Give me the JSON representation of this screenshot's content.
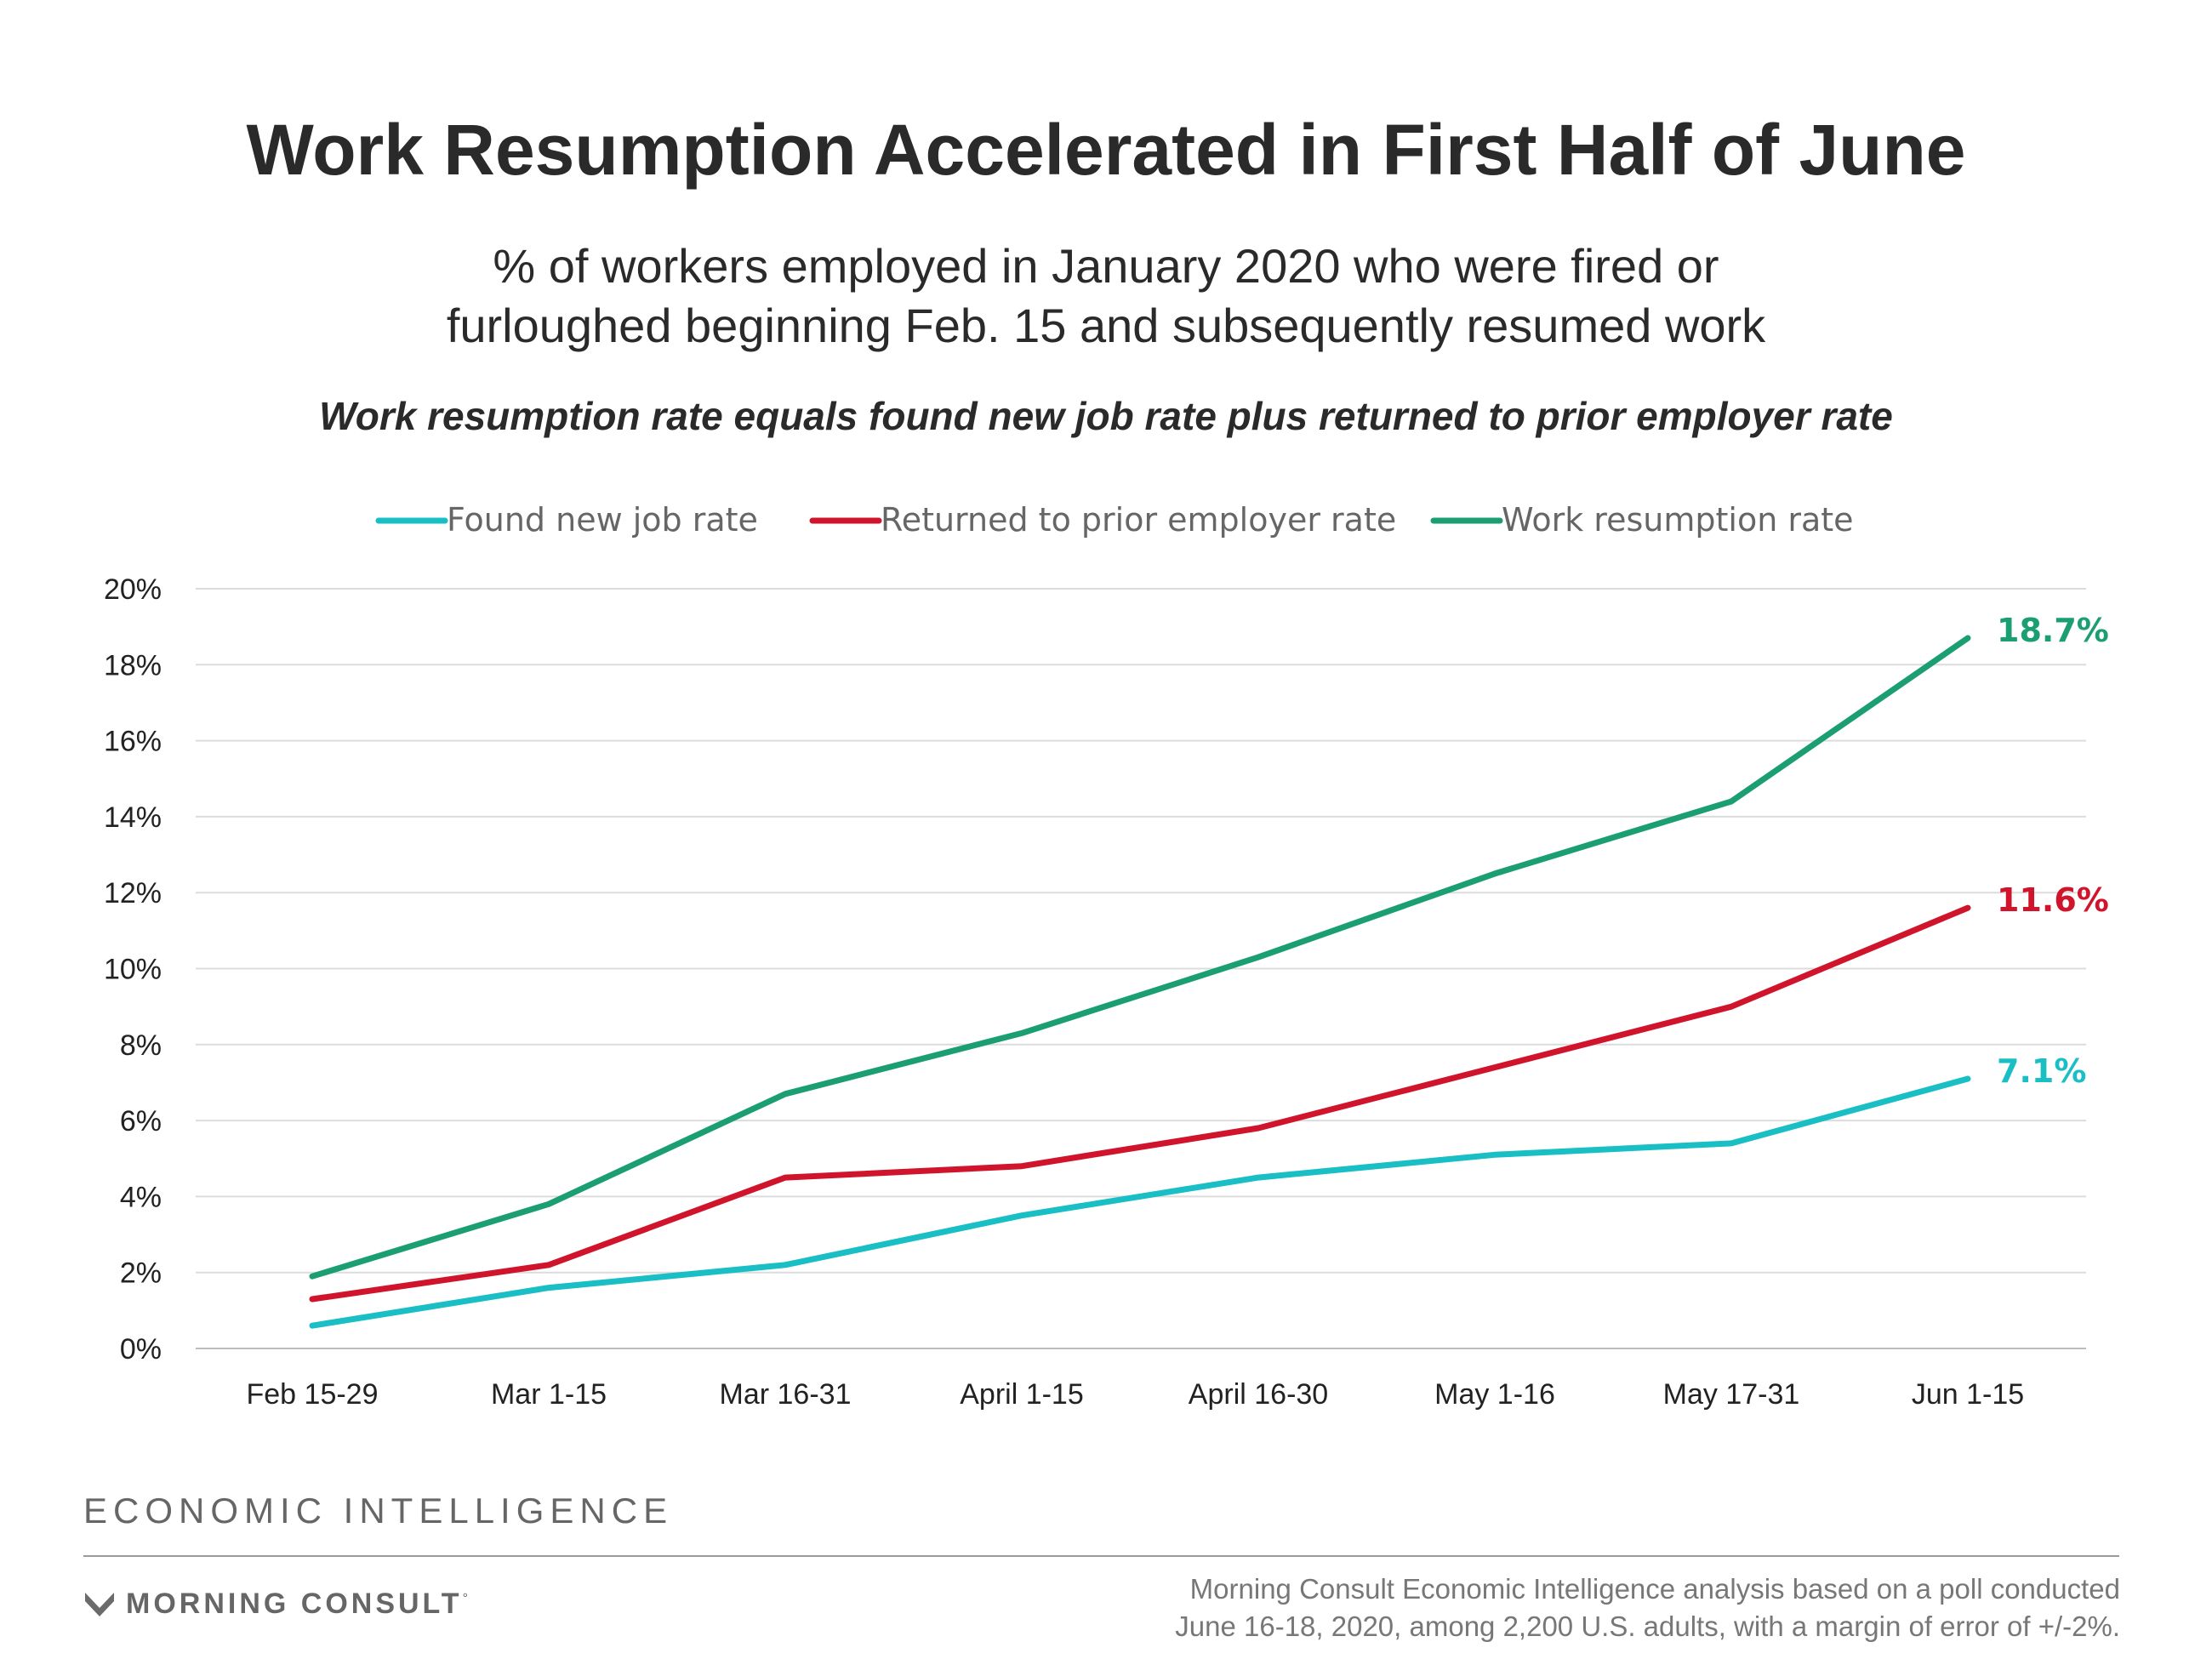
{
  "title": "Work Resumption Accelerated in First Half of June",
  "subtitle_lines": [
    "% of workers employed in January 2020 who were fired or",
    "furloughed beginning Feb. 15 and subsequently resumed work"
  ],
  "note": "Work resumption rate equals found new job rate plus returned to prior employer rate",
  "chart_data": {
    "type": "line",
    "categories": [
      "Feb 15-29",
      "Mar 1-15",
      "Mar 16-31",
      "April 1-15",
      "April 16-30",
      "May 1-16",
      "May 17-31",
      "Jun 1-15"
    ],
    "series": [
      {
        "name": "Found new job rate",
        "color": "#19bfc4",
        "values": [
          0.6,
          1.6,
          2.2,
          3.5,
          4.5,
          5.1,
          5.4,
          7.1
        ],
        "end_label": "7.1%"
      },
      {
        "name": "Returned to prior employer rate",
        "color": "#d0142c",
        "values": [
          1.3,
          2.2,
          4.5,
          4.8,
          5.8,
          7.4,
          9.0,
          11.6
        ],
        "end_label": "11.6%"
      },
      {
        "name": "Work resumption rate",
        "color": "#1a9e72",
        "values": [
          1.9,
          3.8,
          6.7,
          8.3,
          10.3,
          12.5,
          14.4,
          18.7
        ],
        "end_label": "18.7%"
      }
    ],
    "ylim": [
      0,
      20
    ],
    "yticks": [
      0,
      2,
      4,
      6,
      8,
      10,
      12,
      14,
      16,
      18,
      20
    ],
    "ytick_labels": [
      "0%",
      "2%",
      "4%",
      "6%",
      "8%",
      "10%",
      "12%",
      "14%",
      "16%",
      "18%",
      "20%"
    ],
    "grid": true,
    "legend_position": "top-center"
  },
  "branding": {
    "section_label": "ECONOMIC INTELLIGENCE",
    "company": "MORNING CONSULT",
    "company_mark": "°"
  },
  "source_lines": [
    "Morning Consult Economic Intelligence analysis based on a poll conducted",
    "June 16-18, 2020, among 2,200 U.S. adults, with a margin of error of +/-2%."
  ]
}
